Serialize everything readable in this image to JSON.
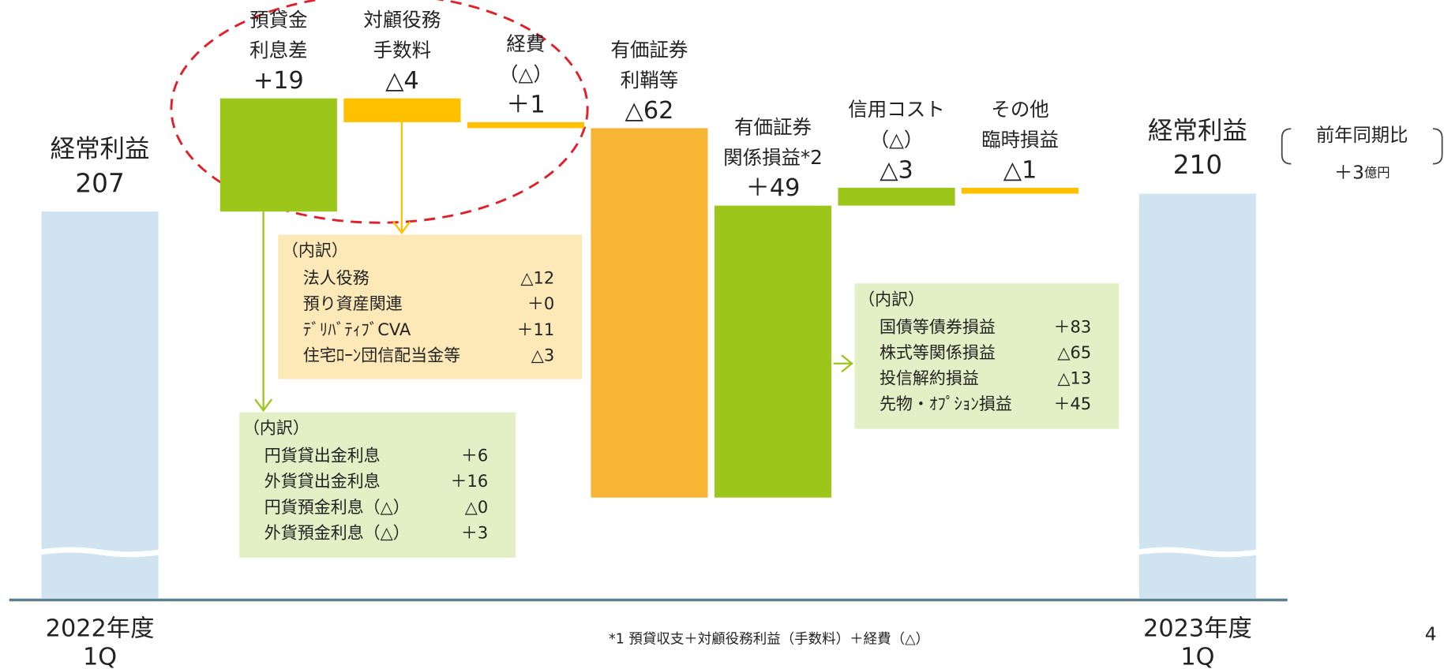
{
  "chart_data": {
    "type": "waterfall",
    "ylim": [
      150,
      230
    ],
    "start": {
      "name": "経常利益",
      "value": 207,
      "period": [
        "2022年度",
        "1Q"
      ]
    },
    "end": {
      "name": "経常利益",
      "value": 210,
      "period": [
        "2023年度",
        "1Q"
      ]
    },
    "total_color": "#cfe3f0",
    "categories": [
      [
        "預貸金",
        "利息差"
      ],
      [
        "対顧役務",
        "手数料"
      ],
      [
        "経費",
        "（△）"
      ],
      [
        "有価証券",
        "利鞘等"
      ],
      [
        "有価証券",
        "関係損益*2"
      ],
      [
        "信用コスト",
        "（△）"
      ],
      [
        "その他",
        "臨時損益"
      ]
    ],
    "values": [
      19,
      -4,
      -1,
      -62,
      49,
      3,
      -1
    ],
    "value_labels": [
      "+19",
      "△4",
      "＋1",
      "△62",
      "＋49",
      "△3",
      "△1"
    ],
    "colors": [
      "#9dc61a",
      "#ffc000",
      "#ffc000",
      "#f6b535",
      "#9dc61a",
      "#9dc61a",
      "#ffc000"
    ],
    "breakdowns": [
      {
        "category": 1,
        "color": "#fde9b8",
        "title": "（内訳）",
        "rows": [
          [
            "法人役務",
            "△12"
          ],
          [
            "預り資産関連",
            "＋0"
          ],
          [
            "ﾃﾞﾘﾊﾞﾃｨﾌﾞCVA",
            "＋11"
          ],
          [
            "住宅ﾛｰﾝ団信配当金等",
            "△3"
          ]
        ]
      },
      {
        "category": 0,
        "color": "#e3efc4",
        "title": "（内訳）",
        "rows": [
          [
            "円貨貸出金利息",
            "＋6"
          ],
          [
            "外貨貸出金利息",
            "＋16"
          ],
          [
            "円貨預金利息（△）",
            "△0"
          ],
          [
            "外貨預金利息（△）",
            "＋3"
          ]
        ]
      },
      {
        "category": 4,
        "color": "#e3efc4",
        "title": "（内訳）",
        "rows": [
          [
            "国債等債券損益",
            "＋83"
          ],
          [
            "株式等関係損益",
            "△65"
          ],
          [
            "投信解約損益",
            "△13"
          ],
          [
            "先物・ｵﾌﾟｼｮﾝ損益",
            "＋45"
          ]
        ]
      }
    ],
    "comparison": {
      "title": "前年同期比",
      "value": "＋3",
      "unit": "億円"
    },
    "footnote": "*1 預貸収支＋対顧役務利益（手数料）＋経費（△）",
    "page_number": "4"
  }
}
